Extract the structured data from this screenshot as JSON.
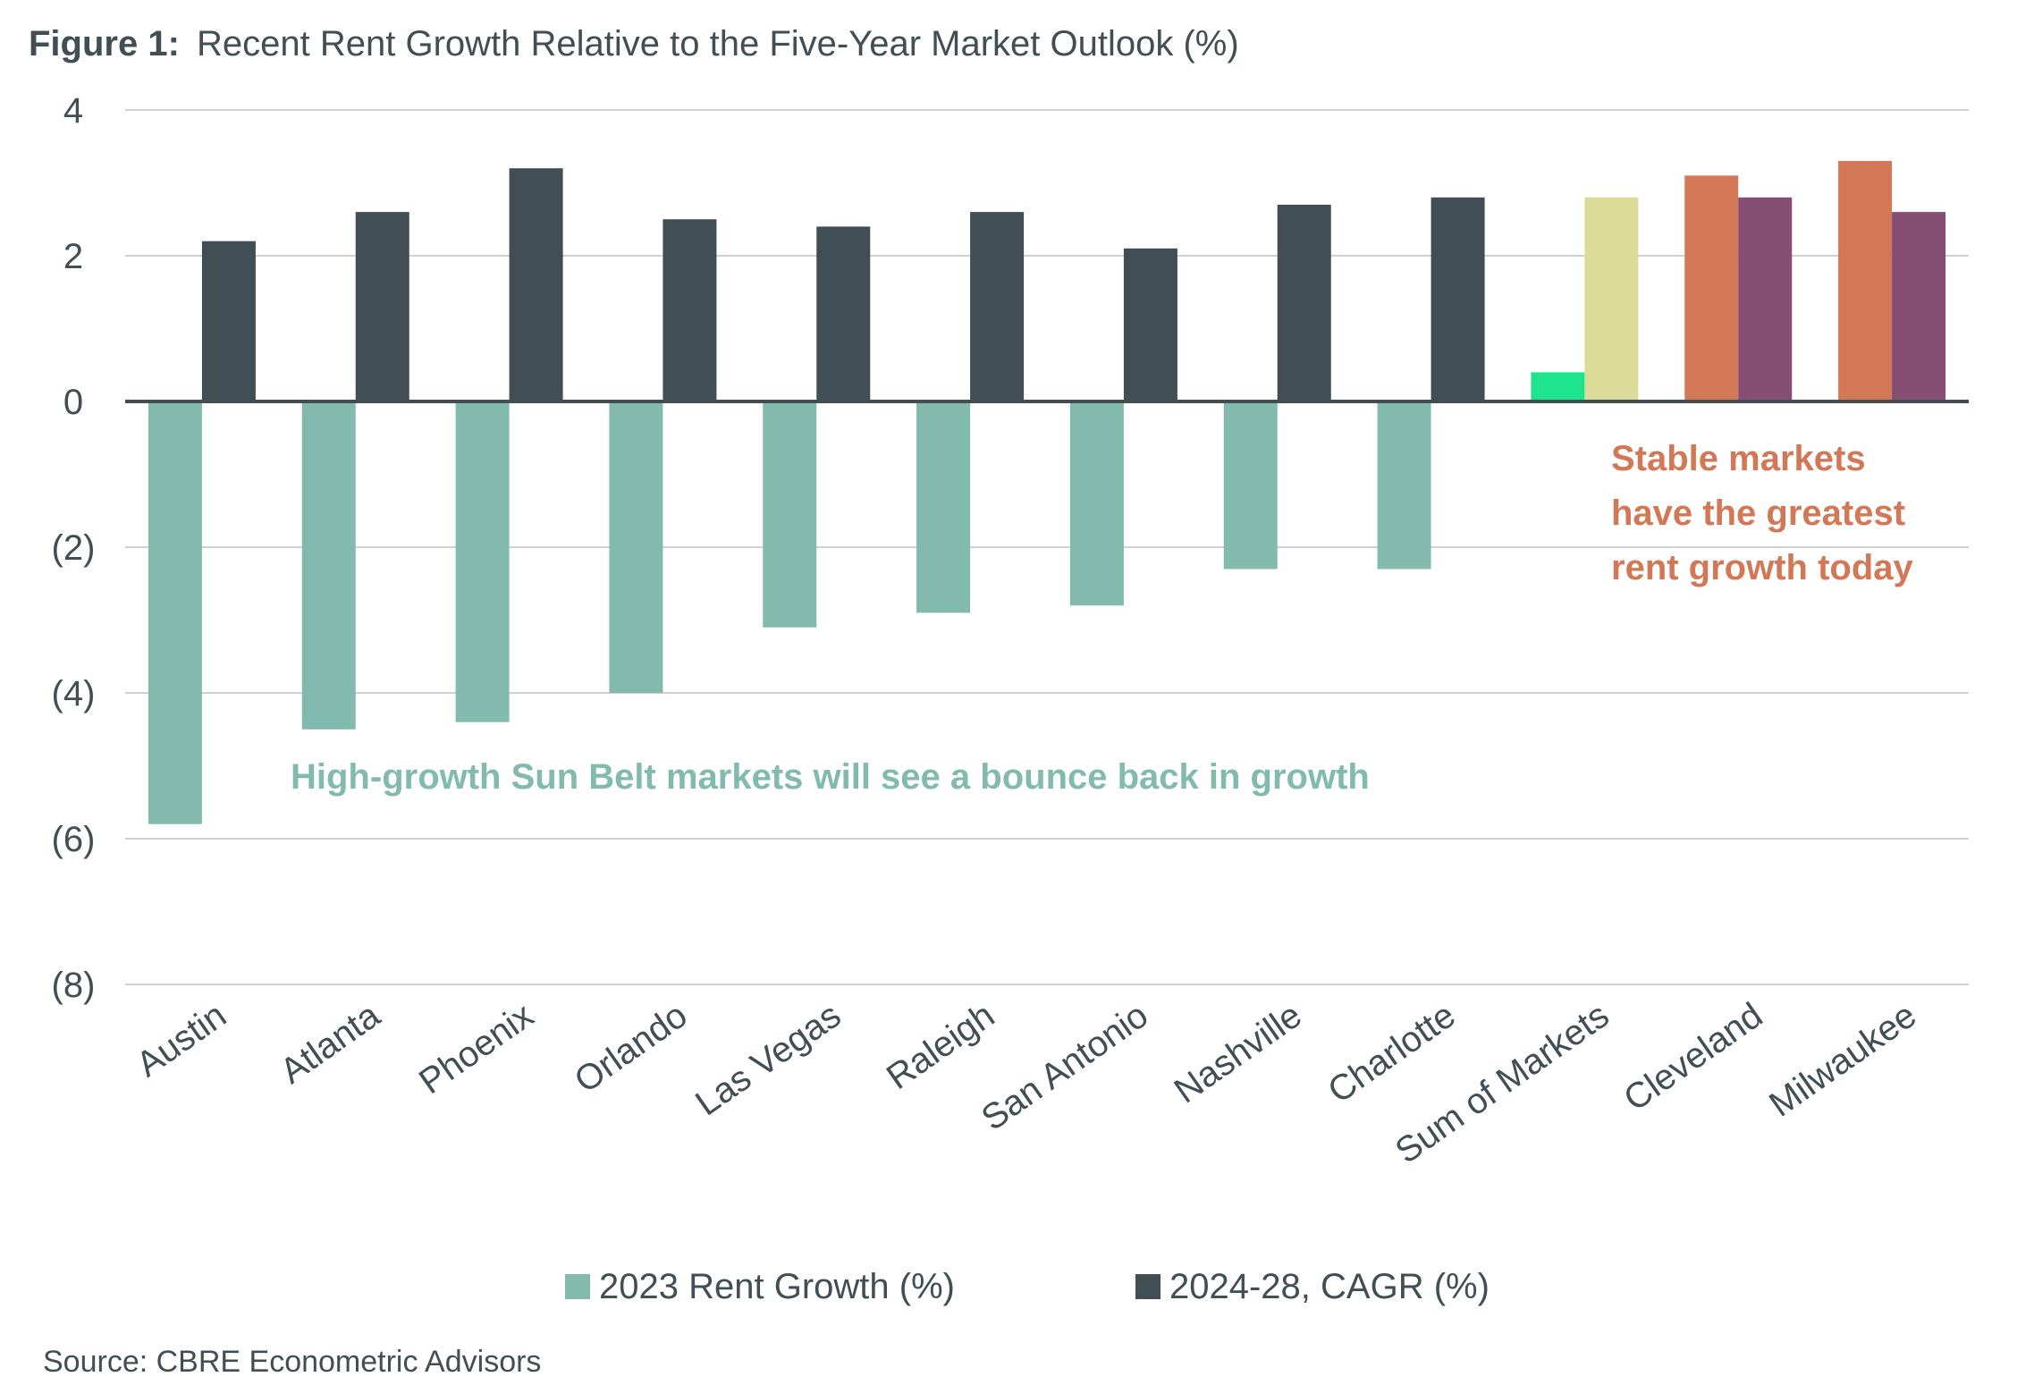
{
  "title": {
    "label": "Figure 1:",
    "text": "Recent Rent Growth Relative to the Five-Year Market Outlook (%)"
  },
  "source": "Source: CBRE Econometric Advisors",
  "annotations": {
    "sunbelt": "High-growth Sun Belt markets will see a bounce back in growth",
    "stable": [
      "Stable markets",
      "have the greatest",
      "rent growth today"
    ]
  },
  "colors": {
    "rent_2023": "#82bbad",
    "cagr": "#414f55",
    "sum_2023": "#1ee58d",
    "sum_cagr": "#dbdb9a",
    "stable_2023": "#d27857",
    "stable_cagr": "#854e72",
    "sunbelt_annotation": "#82bbad",
    "stable_annotation": "#d27857",
    "text": "#414f55",
    "grid": "#d0d0d0"
  },
  "chart_data": {
    "type": "bar",
    "title": "Recent Rent Growth Relative to the Five-Year Market Outlook (%)",
    "categories": [
      "Austin",
      "Atlanta",
      "Phoenix",
      "Orlando",
      "Las Vegas",
      "Raleigh",
      "San Antonio",
      "Nashville",
      "Charlotte",
      "Sum of Markets",
      "Cleveland",
      "Milwaukee"
    ],
    "series": [
      {
        "name": "2023 Rent Growth (%)",
        "values": [
          -5.8,
          -4.5,
          -4.4,
          -4.0,
          -3.1,
          -2.9,
          -2.8,
          -2.3,
          -2.3,
          0.4,
          3.1,
          3.3
        ]
      },
      {
        "name": "2024-28, CAGR (%)",
        "values": [
          2.2,
          2.6,
          3.2,
          2.5,
          2.4,
          2.6,
          2.1,
          2.7,
          2.8,
          2.8,
          2.8,
          2.6
        ]
      }
    ],
    "ylim": [
      -8,
      4
    ],
    "yticks": [
      4,
      2,
      0,
      -2,
      -4,
      -6,
      -8
    ],
    "ytick_labels": [
      "4",
      "2",
      "0",
      "(2)",
      "(4)",
      "(6)",
      "(8)"
    ],
    "xlabel": "",
    "ylabel": "",
    "grid": true,
    "legend_position": "bottom-center"
  }
}
